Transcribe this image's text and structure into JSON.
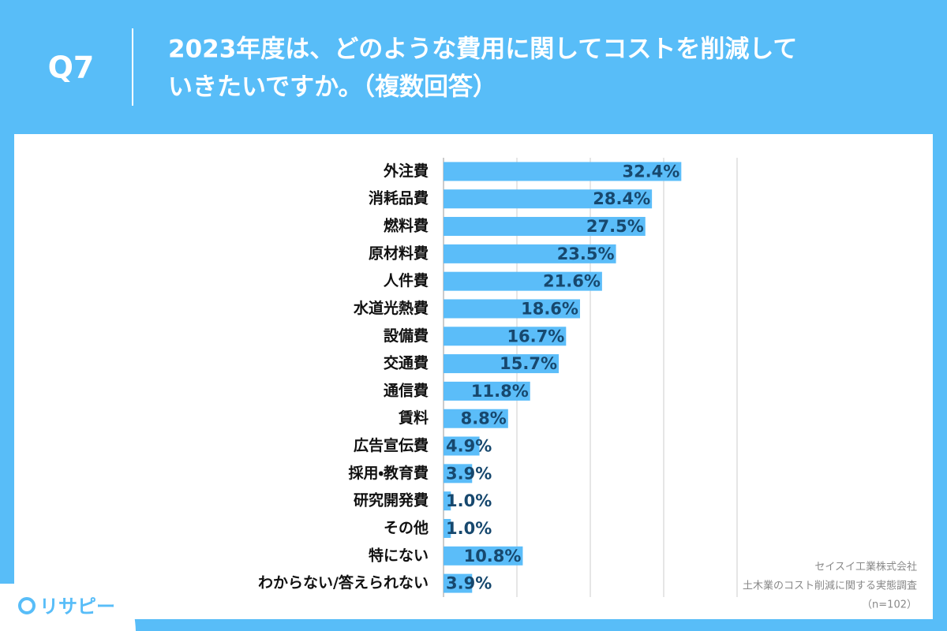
{
  "header": {
    "question": "Q7",
    "title": [
      "2023年度は、どのような費用に関してコストを削減して",
      "いきたいですか。（複数回答）"
    ]
  },
  "chart_data": {
    "type": "hbar",
    "categories": [
      "外注費",
      "消耗品費",
      "燃料費",
      "原材料費",
      "人件費",
      "水道光熱費",
      "設備費",
      "交通費",
      "通信費",
      "賃料",
      "広告宣伝費",
      "採用・教育費",
      "研究開発費",
      "その他",
      "特にない",
      "わからない/答えられない"
    ],
    "values": [
      32.4,
      28.4,
      27.5,
      23.5,
      21.6,
      18.6,
      16.7,
      15.7,
      11.8,
      8.8,
      4.9,
      3.9,
      1.0,
      1.0,
      10.8,
      3.9
    ],
    "value_labels": [
      "32.4%",
      "28.4%",
      "27.5%",
      "23.5%",
      "21.6%",
      "18.6%",
      "16.7%",
      "15.7%",
      "11.8%",
      "8.8%",
      "4.9%",
      "3.9%",
      "1.0%",
      "1.0%",
      "10.8%",
      "3.9%"
    ],
    "color": "#5bbdf9",
    "label_color": "#17486e",
    "xlim": [
      0,
      40
    ],
    "xticks": [
      0,
      10,
      20,
      30,
      40
    ],
    "grid": true
  },
  "source": [
    "セイスイ工業株式会社",
    "土木業のコスト削減に関する実態調査",
    "（n=102）"
  ],
  "logo": "リサピー"
}
